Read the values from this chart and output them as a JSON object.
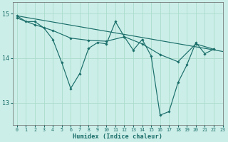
{
  "background_color": "#cceee8",
  "grid_color": "#aaddcc",
  "line_color": "#1a6e6a",
  "xlabel": "Humidex (Indice chaleur)",
  "xlim": [
    -0.5,
    23
  ],
  "ylim": [
    12.5,
    15.25
  ],
  "yticks": [
    13,
    14,
    15
  ],
  "xticks": [
    0,
    1,
    2,
    3,
    4,
    5,
    6,
    7,
    8,
    9,
    10,
    11,
    12,
    13,
    14,
    15,
    16,
    17,
    18,
    19,
    20,
    21,
    22,
    23
  ],
  "series": [
    {
      "x": [
        0,
        1,
        2,
        3,
        4,
        5,
        6,
        7,
        8,
        9,
        10,
        11,
        12,
        13,
        14,
        15,
        16,
        17,
        18,
        19,
        20,
        21,
        22
      ],
      "y": [
        14.95,
        14.82,
        14.82,
        14.68,
        14.42,
        13.9,
        13.32,
        13.65,
        14.22,
        14.35,
        14.32,
        14.82,
        14.48,
        14.18,
        14.42,
        14.05,
        12.72,
        12.8,
        13.45,
        13.85,
        14.35,
        14.1,
        14.2
      ],
      "marker": true,
      "smooth": false
    },
    {
      "x": [
        0,
        23
      ],
      "y": [
        14.95,
        14.15
      ],
      "marker": false,
      "smooth": false
    },
    {
      "x": [
        0,
        2,
        4,
        6,
        8,
        10,
        12,
        14,
        16,
        18,
        20,
        22
      ],
      "y": [
        14.9,
        14.75,
        14.62,
        14.45,
        14.4,
        14.38,
        14.48,
        14.32,
        14.08,
        13.92,
        14.32,
        14.2
      ],
      "marker": true,
      "smooth": false
    }
  ]
}
